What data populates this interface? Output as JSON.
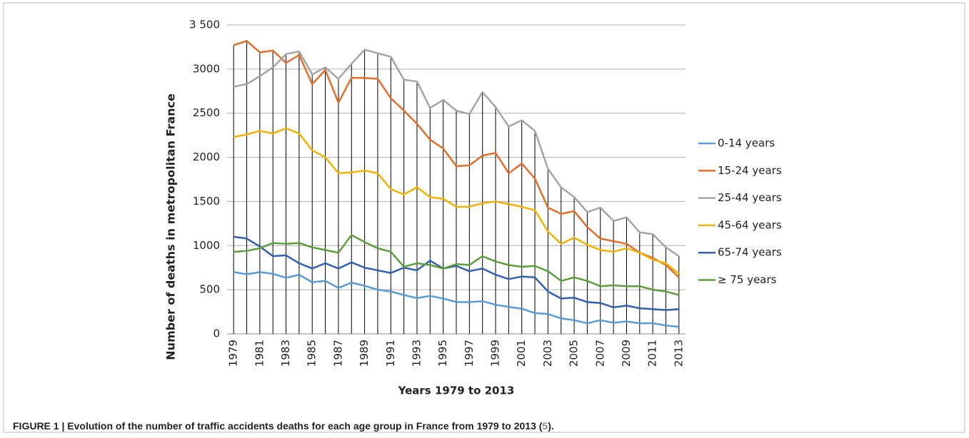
{
  "chart_data": {
    "type": "line",
    "y_label": "Number of deaths in metropolitan France",
    "x_label": "Years 1979 to 2013",
    "categories": [
      "1979",
      null,
      "1981",
      null,
      "1983",
      null,
      "1985",
      null,
      "1987",
      null,
      "1989",
      null,
      "1991",
      null,
      "1993",
      null,
      "1995",
      null,
      "1997",
      null,
      "1999",
      null,
      "2001",
      null,
      "2003",
      null,
      "2005",
      null,
      "2007",
      null,
      "2009",
      null,
      "2011",
      null,
      "2013"
    ],
    "ylim": [
      0,
      3500
    ],
    "yticks": [
      0,
      500,
      1000,
      1500,
      2000,
      2500,
      3000,
      {
        "value": 3500,
        "label": "3 500"
      }
    ],
    "grid": true,
    "drop_lines": true,
    "legend": "right",
    "series": [
      {
        "name": "0-14 years",
        "color": "#5b9bd5",
        "values": [
          700,
          675,
          700,
          680,
          635,
          670,
          585,
          600,
          520,
          580,
          545,
          500,
          480,
          440,
          405,
          430,
          400,
          360,
          360,
          370,
          330,
          305,
          285,
          235,
          225,
          175,
          155,
          120,
          155,
          125,
          140,
          120,
          120,
          95,
          80
        ]
      },
      {
        "name": "15-24 years",
        "color": "#e0702c",
        "values": [
          3270,
          3320,
          3190,
          3210,
          3070,
          3160,
          2830,
          2990,
          2620,
          2900,
          2900,
          2890,
          2670,
          2530,
          2380,
          2200,
          2100,
          1900,
          1910,
          2020,
          2050,
          1820,
          1930,
          1760,
          1430,
          1360,
          1390,
          1210,
          1080,
          1050,
          1020,
          920,
          860,
          780,
          640
        ]
      },
      {
        "name": "25-44 years",
        "color": "#a5a5a5",
        "values": [
          2800,
          2830,
          2920,
          3020,
          3170,
          3200,
          2940,
          3020,
          2890,
          3060,
          3220,
          3180,
          3140,
          2880,
          2860,
          2560,
          2650,
          2530,
          2490,
          2740,
          2570,
          2350,
          2420,
          2300,
          1870,
          1660,
          1550,
          1380,
          1430,
          1280,
          1320,
          1150,
          1130,
          980,
          880
        ]
      },
      {
        "name": "45-64 years",
        "color": "#f2b300",
        "values": [
          2230,
          2260,
          2300,
          2270,
          2330,
          2270,
          2080,
          2000,
          1820,
          1830,
          1850,
          1820,
          1640,
          1580,
          1660,
          1550,
          1530,
          1440,
          1440,
          1480,
          1500,
          1470,
          1440,
          1400,
          1160,
          1020,
          1090,
          1010,
          950,
          930,
          970,
          920,
          840,
          800,
          680
        ]
      },
      {
        "name": "65-74 years",
        "color": "#3560ab",
        "values": [
          1100,
          1080,
          990,
          880,
          890,
          800,
          740,
          800,
          740,
          810,
          750,
          720,
          690,
          750,
          720,
          830,
          740,
          770,
          710,
          740,
          670,
          620,
          650,
          640,
          480,
          400,
          410,
          360,
          350,
          300,
          320,
          290,
          280,
          270,
          280
        ]
      },
      {
        "name": "≥ 75 years",
        "color": "#5f9e3c",
        "values": [
          930,
          940,
          970,
          1030,
          1020,
          1030,
          980,
          950,
          920,
          1120,
          1040,
          970,
          930,
          760,
          800,
          780,
          740,
          790,
          780,
          880,
          820,
          780,
          760,
          770,
          710,
          600,
          640,
          600,
          540,
          550,
          540,
          540,
          500,
          480,
          440
        ]
      }
    ]
  },
  "caption": {
    "label": "FIGURE 1 |",
    "text": " Evolution of the number of traffic accidents deaths for each age group in France from 1979 to 2013 (",
    "ref": "5",
    "end": ")."
  }
}
